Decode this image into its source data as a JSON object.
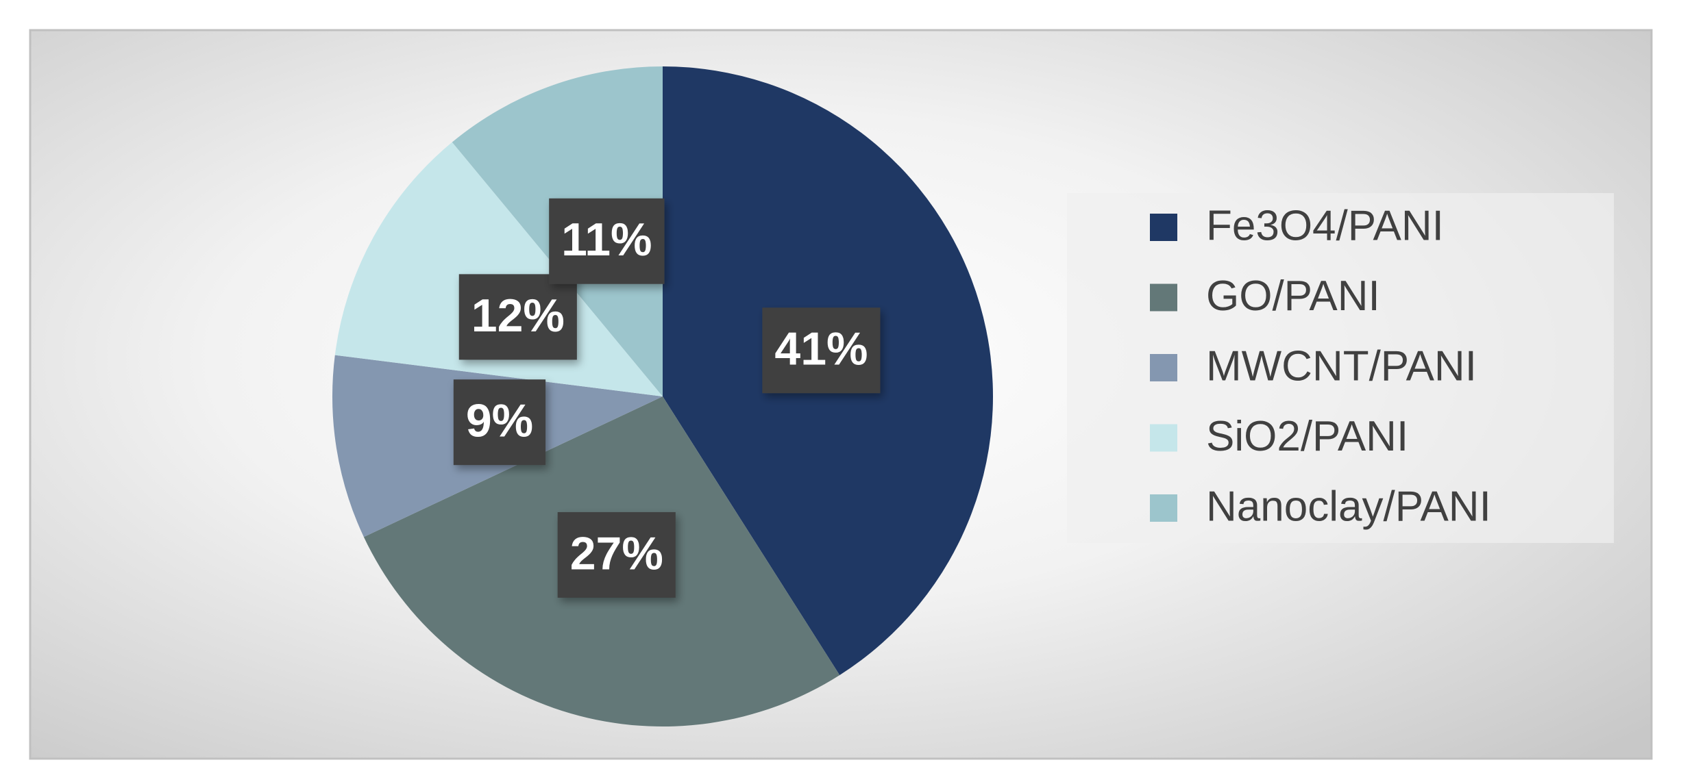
{
  "chart_data": {
    "type": "pie",
    "categories": [
      "Fe3O4/PANI",
      "GO/PANI",
      "MWCNT/PANI",
      "SiO2/PANI",
      "Nanoclay/PANI"
    ],
    "values": [
      41,
      27,
      9,
      12,
      11
    ],
    "value_labels": [
      "41%",
      "27%",
      "9%",
      "12%",
      "11%"
    ],
    "colors": [
      "#1f3864",
      "#637878",
      "#8497b0",
      "#c5e6ea",
      "#9cc5cc"
    ],
    "legend": "right"
  }
}
